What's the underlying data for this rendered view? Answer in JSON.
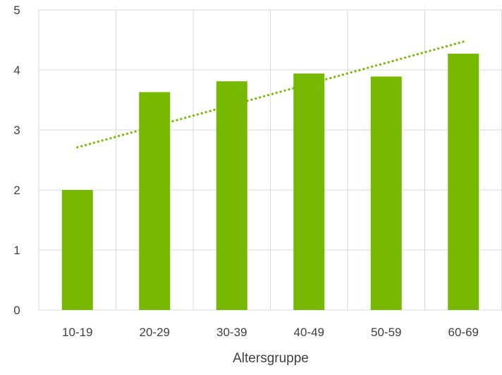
{
  "chart_data": {
    "type": "bar",
    "title": "",
    "xlabel": "Altersgruppe",
    "ylabel": "",
    "categories": [
      "10-19",
      "20-29",
      "30-39",
      "40-49",
      "50-59",
      "60-69"
    ],
    "series": [
      {
        "values": [
          2.0,
          3.63,
          3.81,
          3.94,
          3.89,
          4.27
        ]
      }
    ],
    "trendline": {
      "type": "linear",
      "style": "dotted",
      "start": 2.71,
      "end": 4.47
    },
    "ylim": [
      0,
      5
    ],
    "yticks": [
      "0",
      "1",
      "2",
      "3",
      "4",
      "5"
    ],
    "grid": "vertical and horizontal",
    "legend": "none",
    "colors": {
      "bar": "#76b900",
      "trendline": "#76b900",
      "grid": "#d9d9d9",
      "text": "#404040"
    }
  }
}
